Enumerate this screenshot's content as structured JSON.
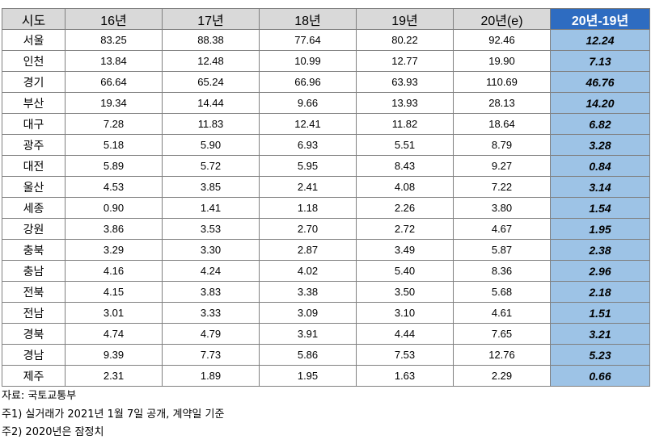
{
  "table": {
    "header": [
      "시도",
      "16년",
      "17년",
      "18년",
      "19년",
      "20년(e)",
      "20년-19년"
    ],
    "rows": [
      [
        "서울",
        "83.25",
        "88.38",
        "77.64",
        "80.22",
        "92.46",
        "12.24"
      ],
      [
        "인천",
        "13.84",
        "12.48",
        "10.99",
        "12.77",
        "19.90",
        "7.13"
      ],
      [
        "경기",
        "66.64",
        "65.24",
        "66.96",
        "63.93",
        "110.69",
        "46.76"
      ],
      [
        "부산",
        "19.34",
        "14.44",
        "9.66",
        "13.93",
        "28.13",
        "14.20"
      ],
      [
        "대구",
        "7.28",
        "11.83",
        "12.41",
        "11.82",
        "18.64",
        "6.82"
      ],
      [
        "광주",
        "5.18",
        "5.90",
        "6.93",
        "5.51",
        "8.79",
        "3.28"
      ],
      [
        "대전",
        "5.89",
        "5.72",
        "5.95",
        "8.43",
        "9.27",
        "0.84"
      ],
      [
        "울산",
        "4.53",
        "3.85",
        "2.41",
        "4.08",
        "7.22",
        "3.14"
      ],
      [
        "세종",
        "0.90",
        "1.41",
        "1.18",
        "2.26",
        "3.80",
        "1.54"
      ],
      [
        "강원",
        "3.86",
        "3.53",
        "2.70",
        "2.72",
        "4.67",
        "1.95"
      ],
      [
        "충북",
        "3.29",
        "3.30",
        "2.87",
        "3.49",
        "5.87",
        "2.38"
      ],
      [
        "충남",
        "4.16",
        "4.24",
        "4.02",
        "5.40",
        "8.36",
        "2.96"
      ],
      [
        "전북",
        "4.15",
        "3.83",
        "3.38",
        "3.50",
        "5.68",
        "2.18"
      ],
      [
        "전남",
        "3.01",
        "3.33",
        "3.09",
        "3.10",
        "4.61",
        "1.51"
      ],
      [
        "경북",
        "4.74",
        "4.79",
        "3.91",
        "4.44",
        "7.65",
        "3.21"
      ],
      [
        "경남",
        "9.39",
        "7.73",
        "5.86",
        "7.53",
        "12.76",
        "5.23"
      ],
      [
        "제주",
        "2.31",
        "1.89",
        "1.95",
        "1.63",
        "2.29",
        "0.66"
      ]
    ]
  },
  "notes": [
    "자료: 국토교통부",
    "주1) 실거래가 2021년 1월 7일 공개, 계약일 기준",
    "주2) 2020년은 잠정치"
  ]
}
